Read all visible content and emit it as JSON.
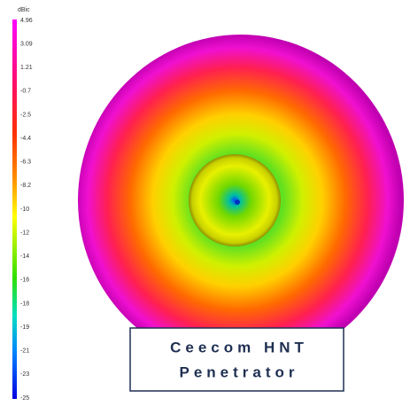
{
  "colorbar": {
    "unit": "dBic",
    "ticks": [
      4.96,
      3.09,
      1.21,
      -0.7,
      -2.5,
      -4.4,
      -6.3,
      -8.2,
      -10,
      -12,
      -14,
      -16,
      -18,
      -19,
      -21,
      -23,
      -25
    ]
  },
  "caption": {
    "lines": [
      "Ceecom HNT",
      "Penetrator"
    ]
  }
}
